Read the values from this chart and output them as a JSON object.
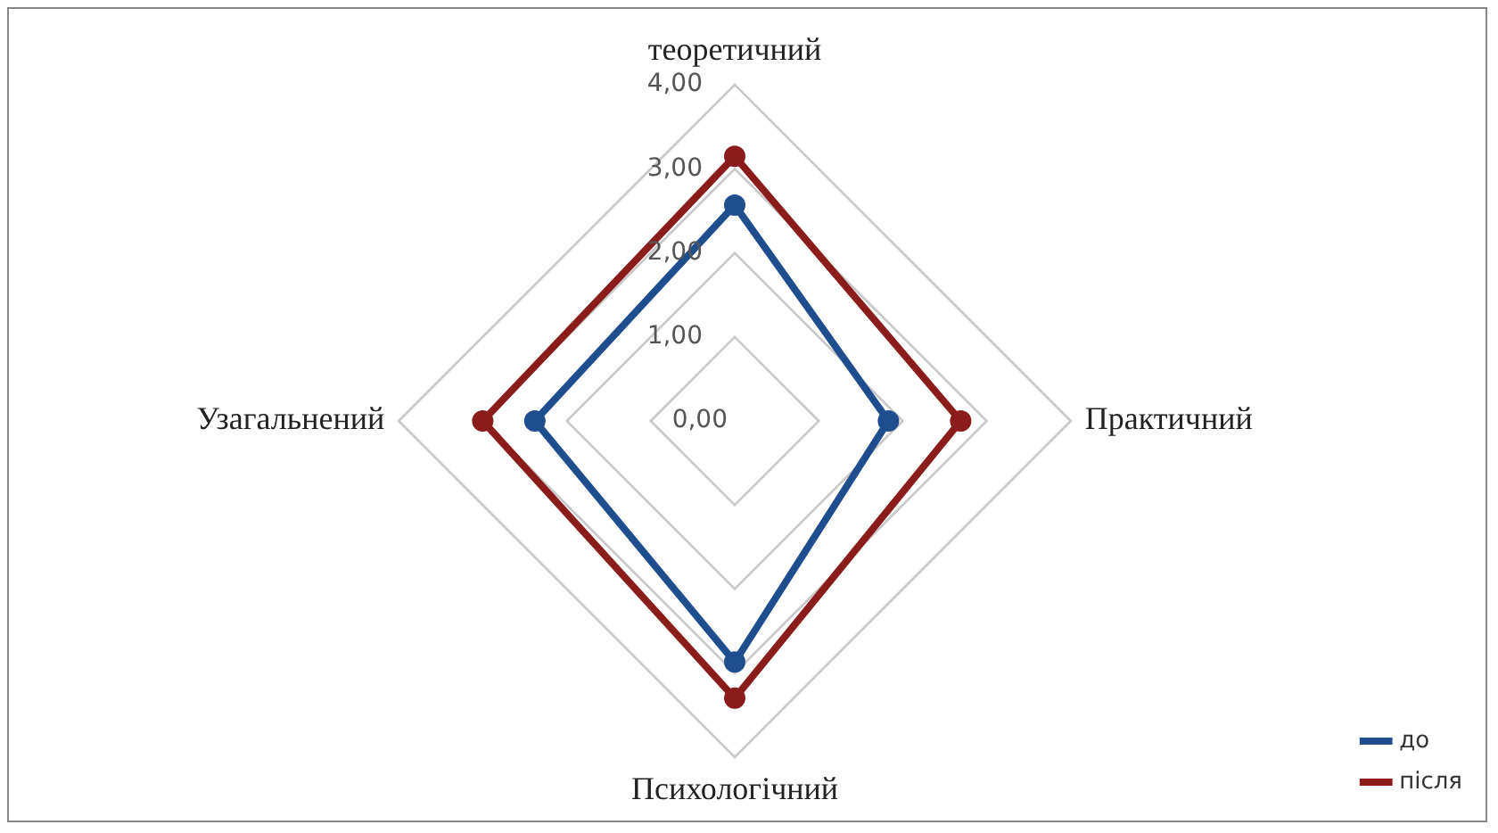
{
  "chart_data": {
    "type": "radar",
    "categories": [
      "теоретичний",
      "Практичний",
      "Психологічний",
      "Узагальнений"
    ],
    "series": [
      {
        "name": "до",
        "color": "#1f4e8f",
        "values": [
          2.57,
          1.83,
          2.87,
          2.38
        ]
      },
      {
        "name": "після",
        "color": "#8b1c1c",
        "values": [
          3.15,
          2.69,
          3.3,
          3.0
        ]
      }
    ],
    "ylim": [
      0,
      4
    ],
    "yticks": [
      {
        "value": 0,
        "label": "0,00"
      },
      {
        "value": 1,
        "label": "1,00"
      },
      {
        "value": 2,
        "label": "2,00"
      },
      {
        "value": 3,
        "label": "3,00"
      },
      {
        "value": 4,
        "label": "4,00"
      }
    ],
    "grid": true,
    "legend": "right",
    "marker": "circle",
    "line_style": "solid"
  }
}
